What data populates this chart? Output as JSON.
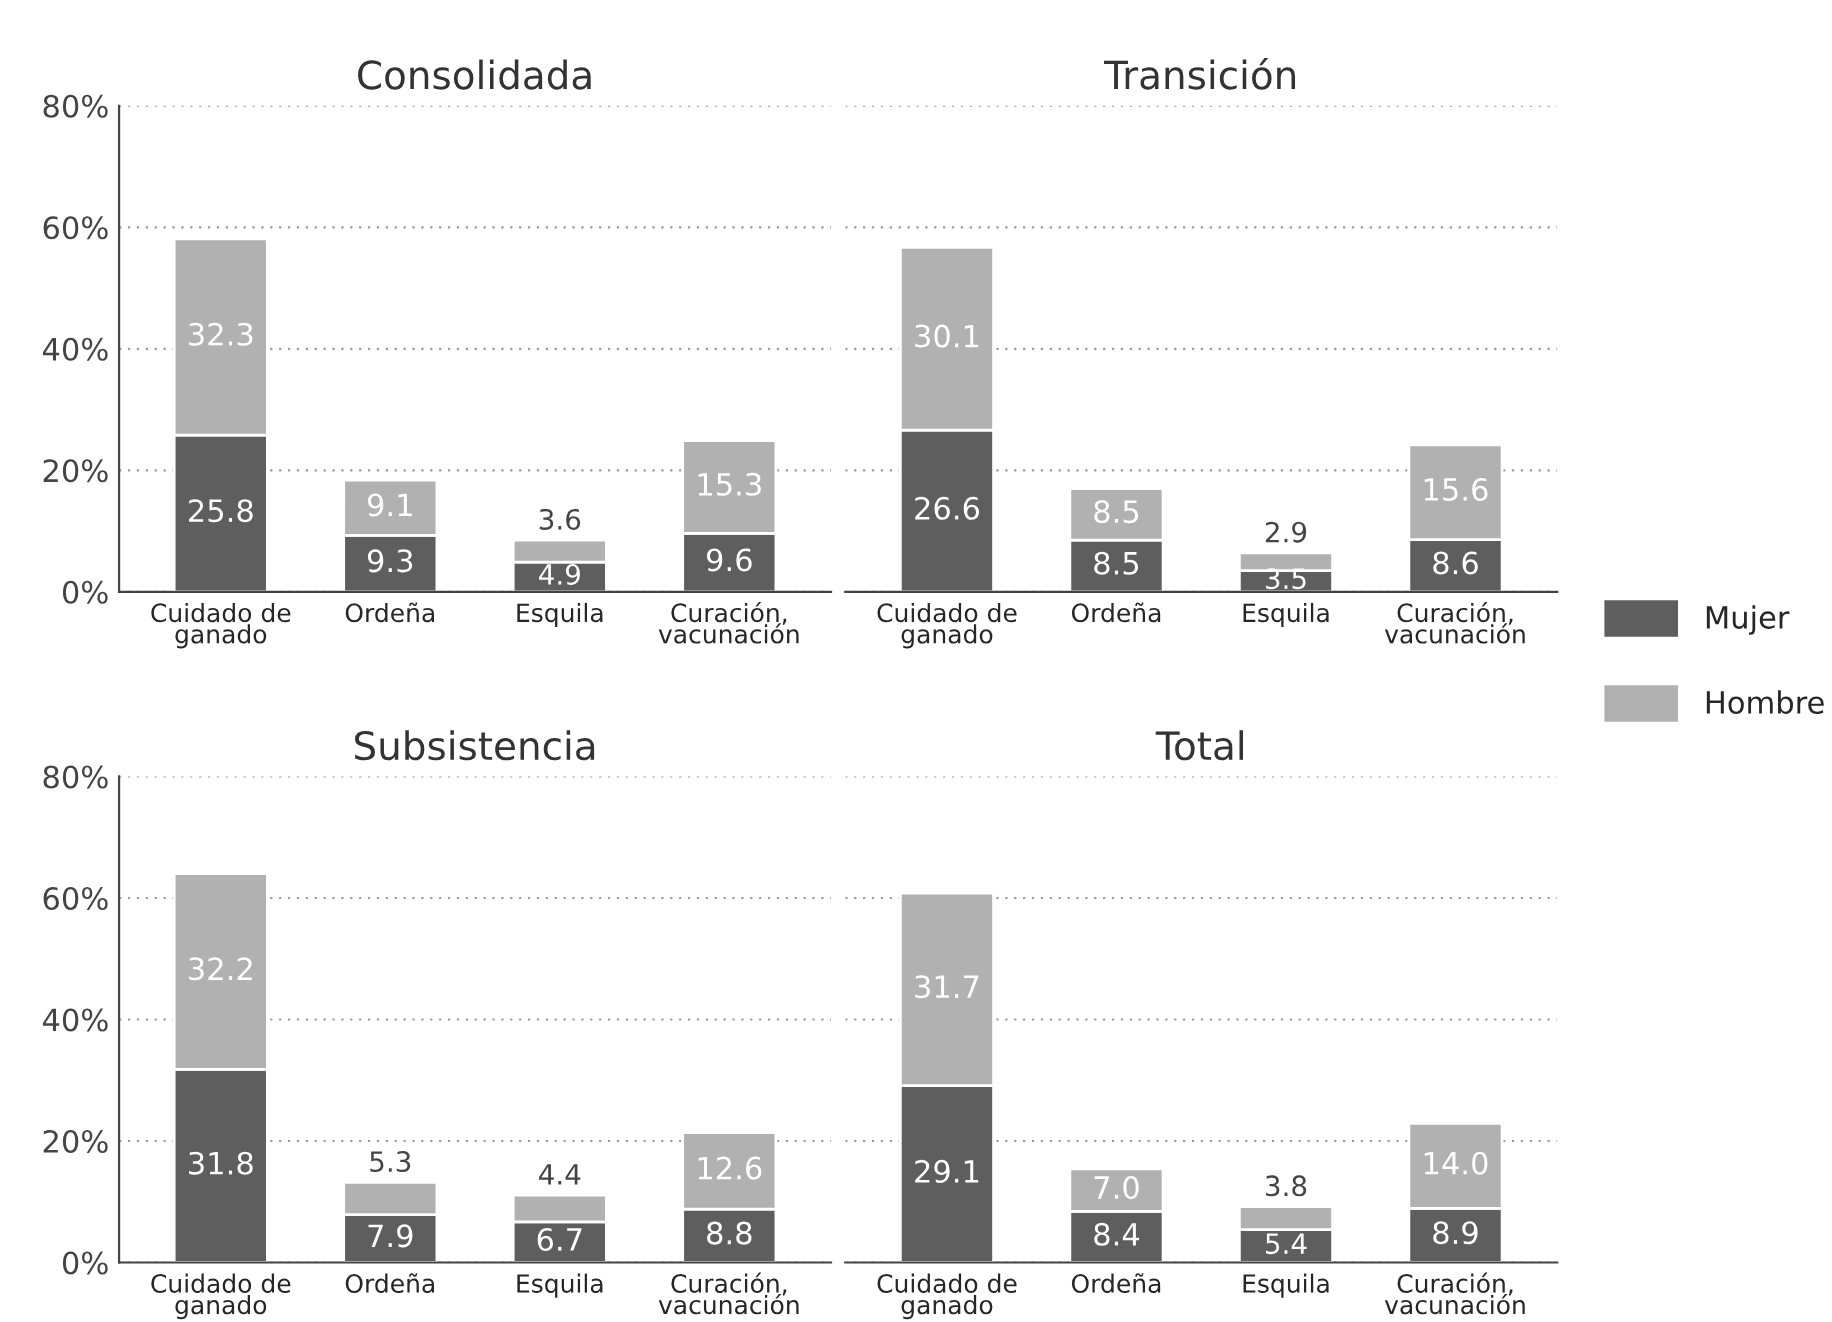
{
  "chart_data": [
    {
      "type": "bar",
      "title": "Consolidada",
      "categories": [
        "Cuidado de\nganado",
        "Ordeña",
        "Esquila",
        "Curación,\nvacunación"
      ],
      "stacked": true,
      "ylim": [
        0,
        80
      ],
      "yticks": [
        {
          "value": 0,
          "label": "0%"
        },
        {
          "value": 20,
          "label": "20%"
        },
        {
          "value": 40,
          "label": "40%"
        },
        {
          "value": 60,
          "label": "60%"
        },
        {
          "value": 80,
          "label": "80%"
        }
      ],
      "grid": "y",
      "legend": "right",
      "series": [
        {
          "name": "Mujer",
          "color": "#5e5e5e",
          "values": [
            25.8,
            9.3,
            4.9,
            9.6
          ],
          "value_labels": [
            "25.8",
            "9.3",
            "4.9",
            "9.6"
          ]
        },
        {
          "name": "Hombre",
          "color": "#b1b1b1",
          "values": [
            32.3,
            9.1,
            3.6,
            15.3
          ],
          "value_labels": [
            "32.3",
            "9.1",
            "3.6",
            "15.3"
          ]
        }
      ]
    },
    {
      "type": "bar",
      "title": "Transición",
      "categories": [
        "Cuidado de\nganado",
        "Ordeña",
        "Esquila",
        "Curación,\nvacunación"
      ],
      "stacked": true,
      "ylim": [
        0,
        80
      ],
      "yticks": [
        0,
        20,
        40,
        60,
        80
      ],
      "tick_labels": "x",
      "grid": "y",
      "series": [
        {
          "color": "#5e5e5e",
          "values": [
            26.6,
            8.5,
            3.5,
            8.6
          ],
          "value_labels": [
            "26.6",
            "8.5",
            "3.5",
            "8.6"
          ]
        },
        {
          "color": "#b1b1b1",
          "values": [
            30.1,
            8.5,
            2.9,
            15.6
          ],
          "value_labels": [
            "30.1",
            "8.5",
            "2.9",
            "15.6"
          ]
        }
      ]
    },
    {
      "type": "bar",
      "title": "Subsistencia",
      "categories": [
        "Cuidado de\nganado",
        "Ordeña",
        "Esquila",
        "Curación,\nvacunación"
      ],
      "stacked": true,
      "ylim": [
        0,
        80
      ],
      "yticks": [
        {
          "value": 0,
          "label": "0%"
        },
        {
          "value": 20,
          "label": "20%"
        },
        {
          "value": 40,
          "label": "40%"
        },
        {
          "value": 60,
          "label": "60%"
        },
        {
          "value": 80,
          "label": "80%"
        }
      ],
      "grid": "y",
      "series": [
        {
          "color": "#5e5e5e",
          "values": [
            31.8,
            7.9,
            6.7,
            8.8
          ],
          "value_labels": [
            "31.8",
            "7.9",
            "6.7",
            "8.8"
          ]
        },
        {
          "color": "#b1b1b1",
          "values": [
            32.2,
            5.3,
            4.4,
            12.6
          ],
          "value_labels": [
            "32.2",
            "5.3",
            "4.4",
            "12.6"
          ]
        }
      ]
    },
    {
      "type": "bar",
      "title": "Total",
      "categories": [
        "Cuidado de\nganado",
        "Ordeña",
        "Esquila",
        "Curación,\nvacunación"
      ],
      "stacked": true,
      "ylim": [
        0,
        80
      ],
      "yticks": [
        0,
        20,
        40,
        60,
        80
      ],
      "tick_labels": "x",
      "grid": "y",
      "series": [
        {
          "color": "#5e5e5e",
          "values": [
            29.1,
            8.4,
            5.4,
            8.9
          ],
          "value_labels": [
            "29.1",
            "8.4",
            "5.4",
            "8.9"
          ]
        },
        {
          "color": "#b1b1b1",
          "values": [
            31.7,
            7.0,
            3.8,
            14.0
          ],
          "value_labels": [
            "31.7",
            "7.0",
            "3.8",
            "14.0"
          ]
        }
      ]
    }
  ]
}
